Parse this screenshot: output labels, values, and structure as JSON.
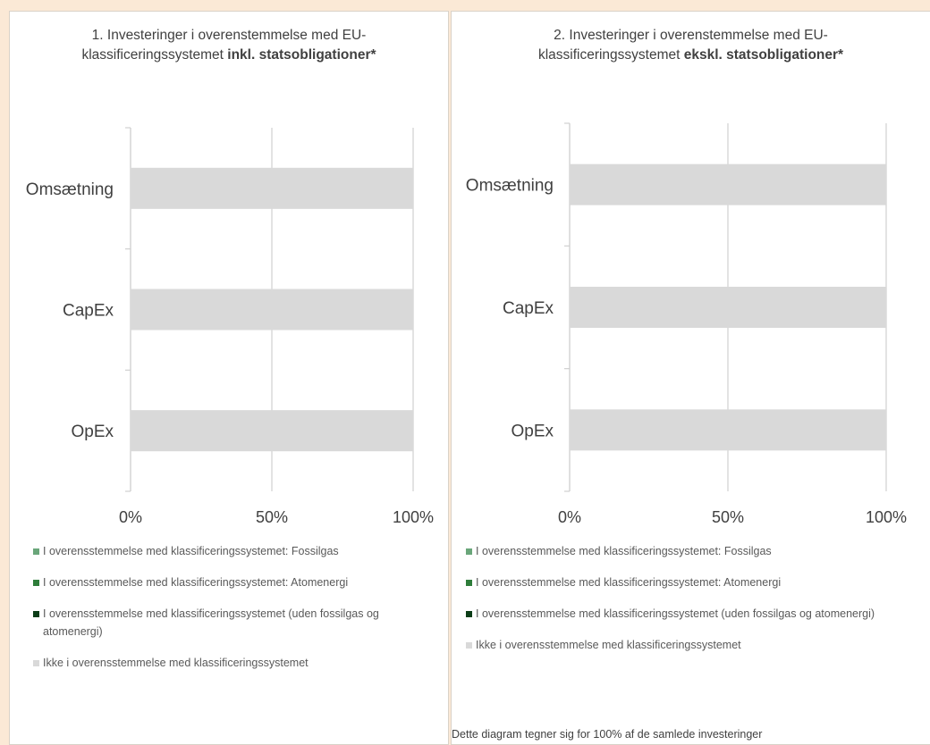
{
  "colors": {
    "fossilgas": "#6aa67a",
    "atomenergi": "#2e7d3a",
    "uden": "#0b3d17",
    "ikke": "#d9d9d9",
    "grid": "#d0d0d0"
  },
  "chart_data": [
    {
      "type": "bar",
      "orientation": "horizontal",
      "stacked": true,
      "title_prefix": "1. Investeringer i overenstemmelse med EU-klassificeringssystemet",
      "title_bold": "inkl. statsobligationer*",
      "categories": [
        "Omsætning",
        "CapEx",
        "OpEx"
      ],
      "x_tick_labels": [
        "0%",
        "50%",
        "100%"
      ],
      "xlim": [
        0,
        100
      ],
      "grid": true,
      "legend_position": "bottom",
      "series": [
        {
          "name": "I overensstemmelse med klassificeringssystemet: Fossilgas",
          "color_key": "fossilgas",
          "values": [
            0,
            0,
            0
          ]
        },
        {
          "name": "I overensstemmelse med klassificeringssystemet: Atomenergi",
          "color_key": "atomenergi",
          "values": [
            0,
            0,
            0
          ]
        },
        {
          "name": "I overensstemmelse med klassificeringssystemet (uden fossilgas og atomenergi)",
          "color_key": "uden",
          "values": [
            0,
            0,
            0
          ]
        },
        {
          "name": "Ikke i overensstemmelse med klassificeringssystemet",
          "color_key": "ikke",
          "values": [
            100,
            100,
            100
          ]
        }
      ]
    },
    {
      "type": "bar",
      "orientation": "horizontal",
      "stacked": true,
      "title_prefix": "2. Investeringer i overenstemmelse med EU-klassificeringssystemet",
      "title_bold": "ekskl. statsobligationer*",
      "categories": [
        "Omsætning",
        "CapEx",
        "OpEx"
      ],
      "x_tick_labels": [
        "0%",
        "50%",
        "100%"
      ],
      "xlim": [
        0,
        100
      ],
      "grid": true,
      "legend_position": "bottom",
      "series": [
        {
          "name": "I overensstemmelse med klassificeringssystemet: Fossilgas",
          "color_key": "fossilgas",
          "values": [
            0,
            0,
            0
          ]
        },
        {
          "name": "I overensstemmelse med klassificeringssystemet: Atomenergi",
          "color_key": "atomenergi",
          "values": [
            0,
            0,
            0
          ]
        },
        {
          "name": "I overensstemmelse med klassificeringssystemet (uden fossilgas og atomenergi)",
          "color_key": "uden",
          "values": [
            0,
            0,
            0
          ]
        },
        {
          "name": "Ikke i overensstemmelse med klassificeringssystemet",
          "color_key": "ikke",
          "values": [
            100,
            100,
            100
          ]
        }
      ]
    }
  ],
  "footnote": "Dette diagram tegner sig for 100% af de samlede investeringer"
}
